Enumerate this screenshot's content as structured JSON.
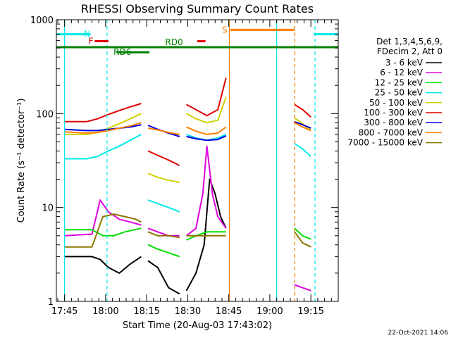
{
  "chart_data": {
    "type": "line",
    "title": "RHESSI Observing Summary Count Rates",
    "xlabel": "Start Time (20-Aug-03 17:43:02)",
    "ylabel": "Count Rate (s⁻¹ detector⁻¹)",
    "yscale": "log",
    "ylim": [
      1,
      1000
    ],
    "y_ticks": [
      1,
      10,
      100,
      1000
    ],
    "y_tick_labels": [
      "1",
      "10",
      "100",
      "1000"
    ],
    "x_range_minutes": [
      -3.0,
      100.0
    ],
    "x_ticks": [
      {
        "label": "17:45",
        "minute": 0
      },
      {
        "label": "18:00",
        "minute": 15
      },
      {
        "label": "18:15",
        "minute": 30
      },
      {
        "label": "18:30",
        "minute": 45
      },
      {
        "label": "18:45",
        "minute": 60
      },
      {
        "label": "19:00",
        "minute": 75
      },
      {
        "label": "19:15",
        "minute": 90
      }
    ],
    "legend_header": [
      "Det 1,3,4,5,6,9,",
      "FDecim 2, Att 0"
    ],
    "legend_position": "right",
    "series": [
      {
        "name": "3 - 6 keV",
        "color": "#000000",
        "segments": [
          [
            [
              0.0,
              3.0
            ],
            [
              10.0,
              3.0
            ],
            [
              13.0,
              2.8
            ],
            [
              16.0,
              2.3
            ],
            [
              20.0,
              2.0
            ],
            [
              24.0,
              2.5
            ],
            [
              28.0,
              3.0
            ]
          ],
          [
            [
              30.5,
              2.7
            ],
            [
              34.0,
              2.3
            ],
            [
              38.0,
              1.4
            ],
            [
              42.0,
              1.2
            ]
          ],
          [
            [
              44.5,
              1.3
            ],
            [
              48.0,
              2.0
            ],
            [
              51.0,
              4.0
            ],
            [
              53.0,
              20.0
            ],
            [
              55.0,
              14.0
            ],
            [
              57.0,
              8.0
            ],
            [
              59.0,
              6.0
            ]
          ]
        ]
      },
      {
        "name": "6 - 12 keV",
        "color": "#e000e0",
        "segments": [
          [
            [
              0.0,
              5.0
            ],
            [
              10.0,
              5.2
            ],
            [
              13.0,
              12.0
            ],
            [
              16.0,
              9.0
            ],
            [
              20.0,
              7.5
            ],
            [
              24.0,
              7.0
            ],
            [
              28.0,
              6.5
            ]
          ],
          [
            [
              30.5,
              6.0
            ],
            [
              34.0,
              5.5
            ],
            [
              38.0,
              5.0
            ],
            [
              42.0,
              5.0
            ]
          ],
          [
            [
              44.5,
              5.0
            ],
            [
              48.0,
              6.0
            ],
            [
              50.5,
              14.0
            ],
            [
              52.0,
              45.0
            ],
            [
              54.0,
              14.0
            ],
            [
              56.0,
              8.0
            ],
            [
              59.0,
              6.0
            ]
          ],
          [
            [
              84.0,
              1.5
            ],
            [
              90.0,
              1.3
            ]
          ]
        ]
      },
      {
        "name": "12 - 25 keV",
        "color": "#00e000",
        "segments": [
          [
            [
              0.0,
              5.8
            ],
            [
              10.0,
              5.8
            ],
            [
              14.0,
              5.0
            ],
            [
              18.0,
              5.0
            ],
            [
              22.0,
              5.5
            ],
            [
              28.0,
              6.0
            ]
          ],
          [
            [
              30.5,
              4.0
            ],
            [
              34.0,
              3.6
            ],
            [
              38.0,
              3.3
            ],
            [
              42.0,
              3.0
            ]
          ],
          [
            [
              44.5,
              4.5
            ],
            [
              48.0,
              5.0
            ],
            [
              52.0,
              5.5
            ],
            [
              56.0,
              5.5
            ],
            [
              59.0,
              5.5
            ]
          ],
          [
            [
              84.0,
              6.0
            ],
            [
              87.0,
              5.0
            ],
            [
              90.0,
              4.6
            ]
          ]
        ]
      },
      {
        "name": "25 - 50 keV",
        "color": "#00e8e8",
        "segments": [
          [
            [
              0.0,
              33.0
            ],
            [
              8.0,
              33.0
            ],
            [
              12.0,
              35.0
            ],
            [
              16.0,
              40.0
            ],
            [
              20.0,
              45.0
            ],
            [
              24.0,
              52.0
            ],
            [
              28.0,
              60.0
            ]
          ],
          [
            [
              30.5,
              12.0
            ],
            [
              34.0,
              11.0
            ],
            [
              38.0,
              10.0
            ],
            [
              42.0,
              9.0
            ]
          ],
          [
            [
              44.5,
              60.0
            ],
            [
              48.0,
              55.0
            ],
            [
              52.0,
              52.0
            ],
            [
              56.0,
              55.0
            ],
            [
              59.0,
              60.0
            ]
          ],
          [
            [
              84.0,
              48.0
            ],
            [
              87.0,
              42.0
            ],
            [
              90.0,
              35.0
            ]
          ]
        ]
      },
      {
        "name": "50 - 100 keV",
        "color": "#d0d000",
        "segments": [
          [
            [
              0.0,
              60.0
            ],
            [
              8.0,
              60.0
            ],
            [
              12.0,
              63.0
            ],
            [
              16.0,
              70.0
            ],
            [
              20.0,
              78.0
            ],
            [
              24.0,
              88.0
            ],
            [
              28.0,
              100.0
            ]
          ],
          [
            [
              30.5,
              23.0
            ],
            [
              34.0,
              21.0
            ],
            [
              38.0,
              19.5
            ],
            [
              42.0,
              18.5
            ]
          ],
          [
            [
              44.5,
              100.0
            ],
            [
              48.0,
              88.0
            ],
            [
              52.0,
              80.0
            ],
            [
              56.0,
              85.0
            ],
            [
              59.0,
              150.0
            ]
          ],
          [
            [
              84.0,
              90.0
            ],
            [
              87.0,
              78.0
            ],
            [
              90.0,
              66.0
            ]
          ]
        ]
      },
      {
        "name": "100 - 300 keV",
        "color": "#e00000",
        "segments": [
          [
            [
              0.0,
              82.0
            ],
            [
              8.0,
              82.0
            ],
            [
              12.0,
              88.0
            ],
            [
              16.0,
              98.0
            ],
            [
              20.0,
              108.0
            ],
            [
              24.0,
              118.0
            ],
            [
              28.0,
              128.0
            ]
          ],
          [
            [
              30.5,
              40.0
            ],
            [
              34.0,
              36.0
            ],
            [
              38.0,
              32.0
            ],
            [
              42.0,
              28.0
            ]
          ],
          [
            [
              44.5,
              125.0
            ],
            [
              48.0,
              110.0
            ],
            [
              52.0,
              95.0
            ],
            [
              56.0,
              110.0
            ],
            [
              59.0,
              240.0
            ]
          ],
          [
            [
              84.0,
              125.0
            ],
            [
              87.0,
              110.0
            ],
            [
              90.0,
              92.0
            ]
          ]
        ]
      },
      {
        "name": "300 - 800 keV",
        "color": "#0000e0",
        "segments": [
          [
            [
              0.0,
              68.0
            ],
            [
              8.0,
              66.0
            ],
            [
              12.0,
              66.0
            ],
            [
              16.0,
              68.0
            ],
            [
              20.0,
              70.0
            ],
            [
              24.0,
              72.0
            ],
            [
              28.0,
              76.0
            ]
          ],
          [
            [
              30.5,
              75.0
            ],
            [
              34.0,
              68.0
            ],
            [
              38.0,
              62.0
            ],
            [
              42.0,
              57.0
            ]
          ],
          [
            [
              44.5,
              57.0
            ],
            [
              48.0,
              54.0
            ],
            [
              52.0,
              52.0
            ],
            [
              56.0,
              53.0
            ],
            [
              59.0,
              58.0
            ]
          ],
          [
            [
              84.0,
              82.0
            ],
            [
              87.0,
              76.0
            ],
            [
              90.0,
              70.0
            ]
          ]
        ]
      },
      {
        "name": "800 - 7000 keV",
        "color": "#ff8000",
        "segments": [
          [
            [
              0.0,
              64.0
            ],
            [
              8.0,
              62.0
            ],
            [
              12.0,
              63.0
            ],
            [
              16.0,
              66.0
            ],
            [
              20.0,
              70.0
            ],
            [
              24.0,
              74.0
            ],
            [
              28.0,
              80.0
            ]
          ],
          [
            [
              30.5,
              70.0
            ],
            [
              34.0,
              67.0
            ],
            [
              38.0,
              63.0
            ],
            [
              42.0,
              60.0
            ]
          ],
          [
            [
              44.5,
              72.0
            ],
            [
              48.0,
              65.0
            ],
            [
              52.0,
              60.0
            ],
            [
              56.0,
              62.0
            ],
            [
              59.0,
              72.0
            ]
          ],
          [
            [
              84.0,
              80.0
            ],
            [
              87.0,
              72.0
            ],
            [
              90.0,
              66.0
            ]
          ]
        ]
      },
      {
        "name": "7000 - 15000 keV",
        "color": "#8b7500",
        "segments": [
          [
            [
              0.0,
              3.8
            ],
            [
              10.0,
              3.8
            ],
            [
              14.0,
              8.0
            ],
            [
              18.0,
              8.5
            ],
            [
              22.0,
              8.0
            ],
            [
              26.0,
              7.5
            ],
            [
              28.0,
              7.0
            ]
          ],
          [
            [
              30.5,
              5.5
            ],
            [
              34.0,
              5.0
            ],
            [
              38.0,
              5.0
            ],
            [
              42.0,
              4.8
            ]
          ],
          [
            [
              44.5,
              5.0
            ],
            [
              48.0,
              5.0
            ],
            [
              52.0,
              5.0
            ],
            [
              56.0,
              5.0
            ],
            [
              59.0,
              5.0
            ]
          ],
          [
            [
              84.0,
              5.5
            ],
            [
              87.0,
              4.2
            ],
            [
              90.0,
              3.8
            ]
          ]
        ]
      }
    ],
    "annotations": [
      {
        "label": "N",
        "color": "#00e8e8",
        "type": "bar",
        "start": -3.0,
        "end": 9.5,
        "level": 700
      },
      {
        "label": "",
        "color": "#00e8e8",
        "type": "bar",
        "start": 91.0,
        "end": 100.0,
        "level": 700
      },
      {
        "label": "F",
        "color": "#e00000",
        "type": "bar",
        "start": 11.0,
        "end": 16.0,
        "level": 590
      },
      {
        "label": "",
        "color": "#e00000",
        "type": "bar",
        "start": 48.5,
        "end": 51.5,
        "level": 590
      },
      {
        "label": "S",
        "color": "#ff8000",
        "type": "bar",
        "start": 60.5,
        "end": 84.0,
        "level": 780
      },
      {
        "label": "RD0",
        "color": "#008000",
        "type": "bar",
        "start": -3.0,
        "end": 100.0,
        "level": 510
      },
      {
        "label": "RD6",
        "color": "#008000",
        "type": "bar",
        "start": 19.0,
        "end": 31.0,
        "level": 450
      }
    ],
    "vertical_markers": [
      {
        "minute": 0.0,
        "color": "#00e8e8",
        "style": "solid"
      },
      {
        "minute": 15.5,
        "color": "#00e8e8",
        "style": "dashed"
      },
      {
        "minute": 60.2,
        "color": "#ff8000",
        "style": "solid"
      },
      {
        "minute": 77.5,
        "color": "#00e8e8",
        "style": "solid"
      },
      {
        "minute": 84.0,
        "color": "#ff8000",
        "style": "dashed"
      },
      {
        "minute": 91.5,
        "color": "#00e8e8",
        "style": "dashed"
      }
    ],
    "footer_date": "22-Oct-2021 14:06"
  }
}
